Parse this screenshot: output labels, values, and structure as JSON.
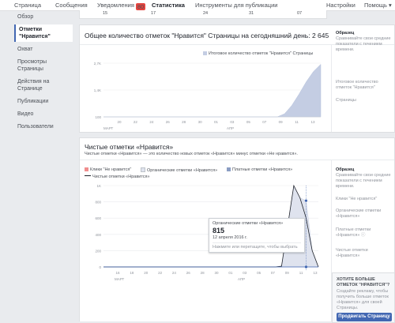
{
  "topnav": {
    "items": [
      "Страница",
      "Сообщения",
      "Уведомления",
      "Статистика",
      "Инструменты для публикации"
    ],
    "notifications_badge": "80",
    "settings": "Настройки",
    "help": "Помощь ▾"
  },
  "top_strip_dates": [
    "15",
    "17",
    "24",
    "31",
    "07"
  ],
  "sidebar": {
    "items": [
      "Обзор",
      "Отметки \"Нравится\"",
      "Охват",
      "Просмотры Страницы",
      "Действия на Странице",
      "Публикации",
      "Видео",
      "Пользователи"
    ]
  },
  "panel1": {
    "title": "Общее количество отметок \"Нравится\" Страницы на сегодняшний день: 2 645",
    "legend": "Итоговое количество отметок \"Нравится\" Страницы",
    "y_ticks": [
      "2,7K",
      "1,4K",
      "100"
    ],
    "x_ticks": [
      "20",
      "22",
      "24",
      "26",
      "28",
      "30",
      "01",
      "03",
      "05",
      "07",
      "09",
      "11",
      "13"
    ],
    "months": [
      "МАРТ",
      "АПР"
    ],
    "side": {
      "head": "Образец",
      "text": "Сравнивайте свои средние показатели с течением времени.",
      "metric": "Итоговое количество отметок \"Нравится\"",
      "unit": "Страницы"
    }
  },
  "panel2": {
    "title": "Чистые отметки «Нравится»",
    "subtitle": "Чистые отметки «Нравится» — это количество новых отметок «Нравится» минус отметки «Не нравится».",
    "legend": [
      "Клики \"Не нравится\"",
      "Органические отметки «Нравится»",
      "Платные отметки «Нравится»",
      "Чистые отметки «Нравится»"
    ],
    "y_ticks": [
      "1K",
      "800",
      "600",
      "400",
      "200",
      "0"
    ],
    "x_ticks": [
      "16",
      "18",
      "20",
      "22",
      "24",
      "26",
      "28",
      "30",
      "01",
      "03",
      "05",
      "07",
      "09",
      "11",
      "13"
    ],
    "months": [
      "МАРТ",
      "АПР"
    ],
    "tooltip": {
      "label": "Органические отметки «Нравится»",
      "value": "815",
      "date": "12 апреля 2016 г.",
      "hint": "Нажмите или перетащите, чтобы выбрать"
    },
    "side": {
      "head": "Образец",
      "text": "Сравнивайте свои средние показатели с течением времени.",
      "items": [
        "Клики \"Не нравится\"",
        "Органические отметки «Нравится»",
        "Платные отметки «Нравится» ⓘ",
        "Чистые отметки «Нравится»"
      ]
    }
  },
  "promo": {
    "title": "ХОТИТЕ БОЛЬШЕ ОТМЕТОК \"НРАВИТСЯ\"?",
    "text": "Создайте рекламу, чтобы получить больше отметок «Нравится» для своей Страницы.",
    "button": "Продвигать Страницу"
  },
  "colors": {
    "accent": "#4267b2",
    "area": "#c4cde3",
    "unlike": "#f08e8e",
    "organic": "#dfe3ee",
    "paid": "#8b9dc3",
    "net": "#1d2129"
  },
  "chart_data": [
    {
      "type": "area",
      "title": "Общее количество отметок \"Нравится\" Страницы на сегодняшний день: 2 645",
      "series": [
        {
          "name": "Итоговое количество отметок \"Нравится\" Страницы",
          "values": [
            100,
            100,
            100,
            100,
            100,
            100,
            100,
            100,
            100,
            100,
            100,
            100,
            100,
            100,
            100,
            100,
            100,
            100,
            100,
            100,
            100,
            100,
            100,
            100,
            100,
            250,
            650,
            1200,
            1800,
            2300,
            2645
          ]
        }
      ],
      "ylim": [
        100,
        2700
      ],
      "grid": true,
      "legend": "top-right"
    },
    {
      "type": "line",
      "title": "Чистые отметки «Нравится»",
      "series": [
        {
          "name": "Органические отметки «Нравится»",
          "values": [
            0,
            0,
            0,
            0,
            0,
            0,
            0,
            0,
            0,
            0,
            0,
            0,
            0,
            0,
            0,
            0,
            0,
            0,
            0,
            0,
            0,
            0,
            0,
            0,
            0,
            0,
            0,
            0,
            0,
            10,
            500,
            1000,
            850,
            815,
            200,
            0
          ]
        },
        {
          "name": "Чистые отметки «Нравится»",
          "values": [
            0,
            0,
            0,
            0,
            0,
            0,
            0,
            0,
            0,
            0,
            0,
            0,
            0,
            0,
            0,
            0,
            0,
            0,
            0,
            0,
            0,
            0,
            0,
            0,
            0,
            0,
            0,
            0,
            0,
            10,
            500,
            1000,
            850,
            600,
            200,
            0
          ]
        }
      ],
      "ylim": [
        0,
        1000
      ],
      "grid": true,
      "legend": "top-left"
    }
  ]
}
